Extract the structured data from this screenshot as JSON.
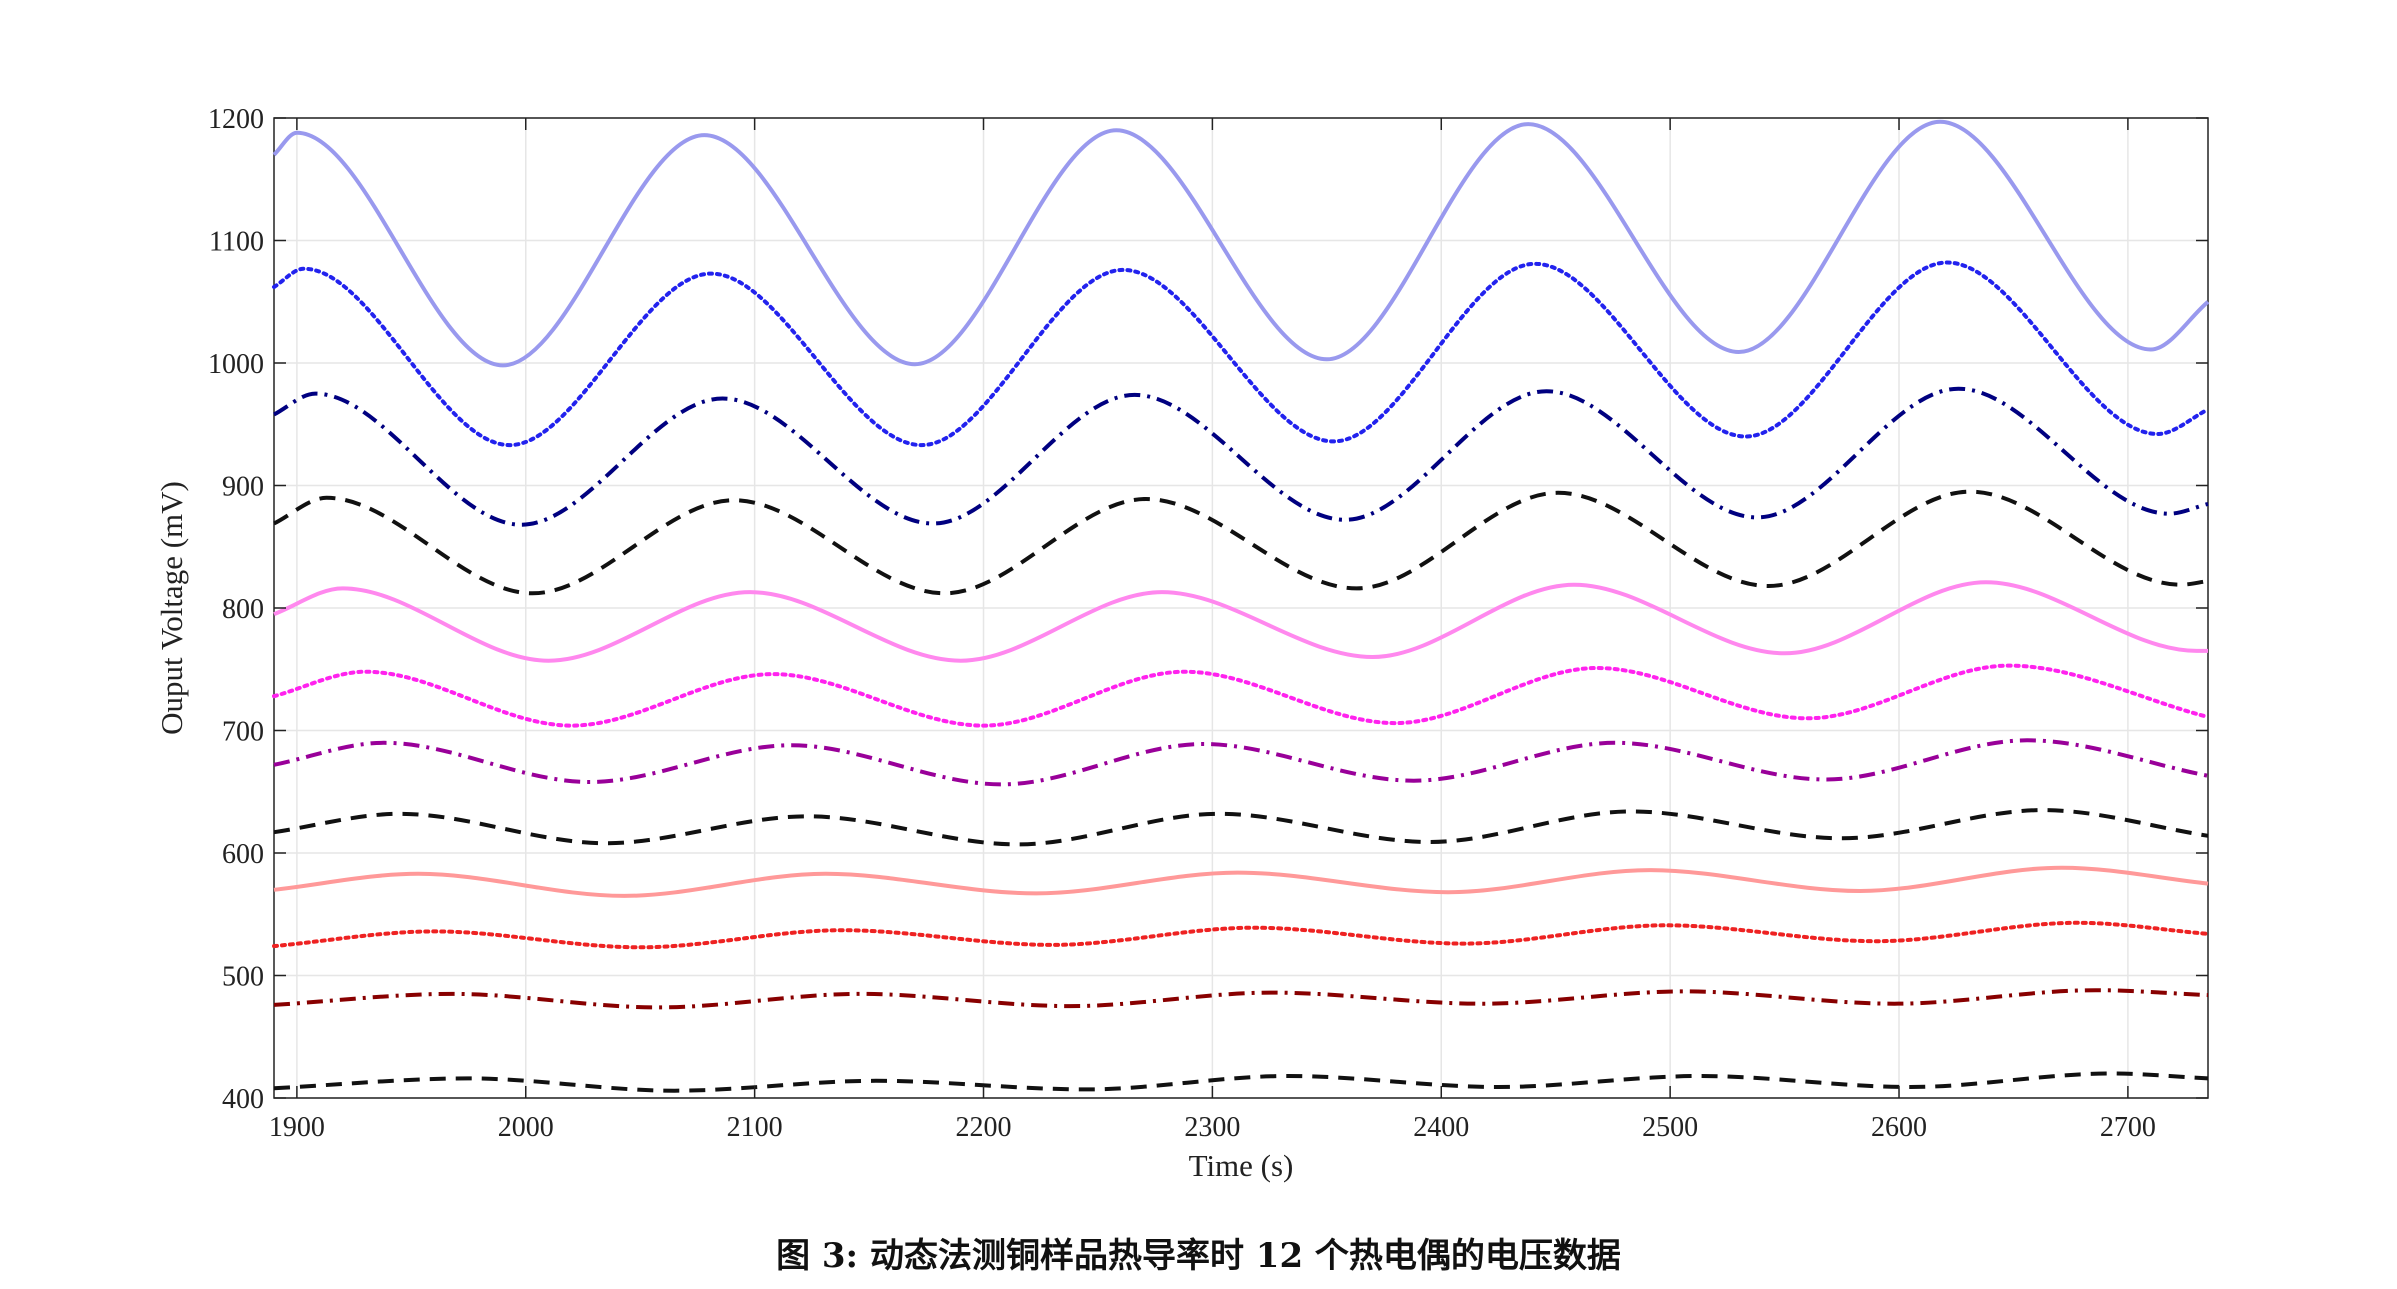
{
  "caption": "图 3: 动态法测铜样品热导率时 12 个热电偶的电压数据",
  "chart_data": {
    "type": "line",
    "title": "",
    "xlabel": "Time (s)",
    "ylabel": "Ouput Voltage (mV)",
    "xlim": [
      1890,
      2735
    ],
    "ylim": [
      400,
      1200
    ],
    "xticks": [
      1900,
      2000,
      2100,
      2200,
      2300,
      2400,
      2500,
      2600,
      2700
    ],
    "yticks": [
      400,
      500,
      600,
      700,
      800,
      900,
      1000,
      1100,
      1200
    ],
    "xtick_labels": [
      "1900",
      "2000",
      "2100",
      "2200",
      "2300",
      "2400",
      "2500",
      "2600",
      "2700"
    ],
    "ytick_labels": [
      "400",
      "500",
      "600",
      "700",
      "800",
      "900",
      "1000",
      "1100",
      "1200"
    ],
    "grid": true,
    "legend": "none",
    "series": [
      {
        "color": "#9999ee",
        "style": "solid",
        "x": [
          1890,
          1900,
          1990,
          2078,
          2170,
          2258,
          2350,
          2438,
          2530,
          2618,
          2710,
          2735
        ],
        "y": [
          1170,
          1188,
          998,
          1186,
          999,
          1190,
          1003,
          1195,
          1009,
          1197,
          1011,
          1050
        ]
      },
      {
        "color": "#2222ee",
        "style": "dotted",
        "x": [
          1890,
          1903,
          1993,
          2081,
          2173,
          2261,
          2353,
          2441,
          2533,
          2621,
          2713,
          2735
        ],
        "y": [
          1062,
          1077,
          933,
          1073,
          933,
          1076,
          936,
          1081,
          940,
          1082,
          942,
          962
        ]
      },
      {
        "color": "#000080",
        "style": "dashdot",
        "x": [
          1890,
          1908,
          1998,
          2086,
          2178,
          2266,
          2358,
          2446,
          2538,
          2626,
          2718,
          2735
        ],
        "y": [
          958,
          975,
          868,
          971,
          869,
          974,
          872,
          977,
          874,
          979,
          877,
          885
        ]
      },
      {
        "color": "#111111",
        "style": "dashed",
        "x": [
          1890,
          1913,
          2003,
          2091,
          2183,
          2271,
          2363,
          2451,
          2543,
          2631,
          2723,
          2735
        ],
        "y": [
          869,
          890,
          812,
          888,
          812,
          889,
          816,
          894,
          818,
          895,
          819,
          822
        ]
      },
      {
        "color": "#ff88ee",
        "style": "solid",
        "x": [
          1890,
          1920,
          2010,
          2098,
          2190,
          2278,
          2370,
          2458,
          2550,
          2638,
          2730,
          2735
        ],
        "y": [
          795,
          816,
          757,
          813,
          757,
          813,
          760,
          819,
          763,
          821,
          765,
          765
        ]
      },
      {
        "color": "#ff22ee",
        "style": "dotted",
        "x": [
          1890,
          1930,
          2020,
          2108,
          2200,
          2288,
          2380,
          2468,
          2560,
          2648,
          2735
        ],
        "y": [
          728,
          748,
          704,
          746,
          704,
          748,
          706,
          751,
          710,
          753,
          711
        ]
      },
      {
        "color": "#990099",
        "style": "dashdot",
        "x": [
          1890,
          1938,
          2028,
          2116,
          2208,
          2296,
          2388,
          2476,
          2568,
          2656,
          2735
        ],
        "y": [
          672,
          690,
          658,
          688,
          656,
          689,
          659,
          690,
          660,
          692,
          663
        ]
      },
      {
        "color": "#111111",
        "style": "dashed",
        "x": [
          1890,
          1945,
          2035,
          2123,
          2215,
          2303,
          2395,
          2483,
          2575,
          2663,
          2735
        ],
        "y": [
          617,
          632,
          608,
          630,
          607,
          632,
          609,
          634,
          612,
          635,
          614
        ]
      },
      {
        "color": "#ff9999",
        "style": "solid",
        "x": [
          1890,
          1953,
          2043,
          2131,
          2223,
          2311,
          2403,
          2491,
          2583,
          2671,
          2735
        ],
        "y": [
          570,
          583,
          565,
          583,
          567,
          584,
          568,
          586,
          569,
          588,
          575
        ]
      },
      {
        "color": "#ee2222",
        "style": "dotted",
        "x": [
          1890,
          1960,
          2050,
          2138,
          2230,
          2318,
          2410,
          2498,
          2590,
          2678,
          2735
        ],
        "y": [
          524,
          536,
          523,
          537,
          525,
          539,
          526,
          541,
          528,
          543,
          534
        ]
      },
      {
        "color": "#880000",
        "style": "dashdot",
        "x": [
          1890,
          1968,
          2058,
          2146,
          2238,
          2326,
          2418,
          2506,
          2598,
          2686,
          2735
        ],
        "y": [
          476,
          485,
          474,
          485,
          475,
          486,
          477,
          487,
          477,
          488,
          484
        ]
      },
      {
        "color": "#111111",
        "style": "dashed",
        "x": [
          1890,
          1975,
          2065,
          2153,
          2245,
          2333,
          2425,
          2513,
          2605,
          2693,
          2735
        ],
        "y": [
          408,
          416,
          406,
          414,
          407,
          418,
          409,
          418,
          409,
          420,
          416
        ]
      }
    ]
  }
}
